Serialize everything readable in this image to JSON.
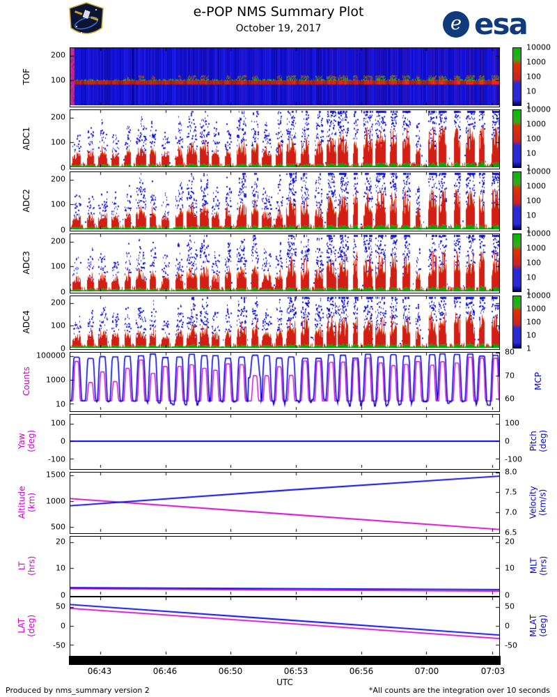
{
  "header": {
    "title": "e-POP NMS Summary Plot",
    "date": "October 19, 2017",
    "esa_logo_text": "esa"
  },
  "footer": {
    "left": "Produced by nms_summary version 2",
    "right": "*All counts are the integration over 10 seconds"
  },
  "colors": {
    "magenta": "#cc00cc",
    "blue": "#0000dd",
    "esa_blue": "#0f3b7c",
    "frame": "#000000"
  },
  "chart_data": {
    "xaxis": {
      "label": "UTC",
      "ticks": [
        {
          "label": "06:43",
          "f": 0.0696
        },
        {
          "label": "06:46",
          "f": 0.2217
        },
        {
          "label": "06:50",
          "f": 0.3738
        },
        {
          "label": "06:53",
          "f": 0.5259
        },
        {
          "label": "06:56",
          "f": 0.678
        },
        {
          "label": "07:00",
          "f": 0.8301
        },
        {
          "label": "07:03",
          "f": 0.9838
        }
      ]
    },
    "colorbar": {
      "scale": "log",
      "ticks": [
        {
          "label": "10000",
          "f": 1
        },
        {
          "label": "1000",
          "f": 0.75
        },
        {
          "label": "100",
          "f": 0.5
        },
        {
          "label": "10",
          "f": 0.25
        },
        {
          "label": "1",
          "f": 0
        }
      ]
    },
    "spectrograms": {
      "seed": 7,
      "bursts": 34,
      "note": "periodic instrument sweeps every ~40 s; count intensity increases toward end of pass"
    },
    "panels": {
      "tof": {
        "type": "heatmap",
        "label": "TOF",
        "yrange": [
          0,
          230
        ],
        "band_center": 95,
        "yticks": [
          {
            "label": "200",
            "f": 0.87
          },
          {
            "label": "100",
            "f": 0.435
          }
        ]
      },
      "adc1": {
        "type": "heatmap",
        "label": "ADC1",
        "yrange": [
          0,
          230
        ],
        "yticks": [
          {
            "label": "200",
            "f": 0.87
          },
          {
            "label": "100",
            "f": 0.435
          },
          {
            "label": "0",
            "f": 0
          }
        ]
      },
      "adc2": {
        "type": "heatmap",
        "label": "ADC2",
        "yrange": [
          0,
          230
        ],
        "yticks": [
          {
            "label": "200",
            "f": 0.87
          },
          {
            "label": "100",
            "f": 0.435
          },
          {
            "label": "0",
            "f": 0
          }
        ]
      },
      "adc3": {
        "type": "heatmap",
        "label": "ADC3",
        "yrange": [
          0,
          230
        ],
        "yticks": [
          {
            "label": "200",
            "f": 0.87
          },
          {
            "label": "100",
            "f": 0.435
          },
          {
            "label": "0",
            "f": 0
          }
        ]
      },
      "adc4": {
        "type": "heatmap",
        "label": "ADC4",
        "yrange": [
          0,
          230
        ],
        "yticks": [
          {
            "label": "200",
            "f": 0.87
          },
          {
            "label": "100",
            "f": 0.435
          },
          {
            "label": "0",
            "f": 0
          }
        ]
      },
      "counts": {
        "type": "line",
        "left_label": "Counts",
        "right_label": "MCP",
        "left_scale": "log",
        "left_range_log10": [
          0.5,
          5.3
        ],
        "right_range": [
          55,
          80
        ],
        "left_ticks": [
          {
            "label": "100000",
            "f": 0.9375
          },
          {
            "label": "1000",
            "f": 0.5208
          },
          {
            "label": "10",
            "f": 0.1042
          }
        ],
        "right_ticks": [
          {
            "label": "80",
            "f": 1
          },
          {
            "label": "70",
            "f": 0.6
          },
          {
            "label": "60",
            "f": 0.2
          }
        ],
        "mcp_high": 78.5,
        "mcp_low": 58,
        "counts_base_log10": 1.25,
        "counts_peak_log10_range": [
          2.8,
          5.0
        ]
      },
      "yaw": {
        "type": "line",
        "left_label": "Yaw\n(deg)",
        "right_label": "Pitch\n(deg)",
        "left_range": [
          -150,
          150
        ],
        "right_range": [
          -150,
          150
        ],
        "left_ticks": [
          {
            "label": "100",
            "f": 0.8333
          },
          {
            "label": "0",
            "f": 0.5
          },
          {
            "label": "-100",
            "f": 0.1667
          }
        ],
        "right_ticks": [
          {
            "label": "100",
            "f": 0.8333
          },
          {
            "label": "0",
            "f": 0.5
          },
          {
            "label": "-100",
            "f": 0.1667
          }
        ],
        "series": [
          {
            "name": "Yaw",
            "axis": "left",
            "color": "#cc00cc",
            "points": [
              [
                0,
                0
              ],
              [
                1,
                0
              ]
            ]
          },
          {
            "name": "Pitch",
            "axis": "right",
            "color": "#0000dd",
            "points": [
              [
                0,
                0
              ],
              [
                1,
                0
              ]
            ]
          }
        ]
      },
      "alt": {
        "type": "line",
        "left_label": "Altitude\n(km)",
        "right_label": "Velocity\n(km/s)",
        "left_range": [
          400,
          1550
        ],
        "right_range": [
          6.5,
          8.0
        ],
        "left_ticks": [
          {
            "label": "1500",
            "f": 0.9565
          },
          {
            "label": "1000",
            "f": 0.5217
          },
          {
            "label": "500",
            "f": 0.087
          }
        ],
        "right_ticks": [
          {
            "label": "8.0",
            "f": 1
          },
          {
            "label": "7.5",
            "f": 0.6667
          },
          {
            "label": "7.0",
            "f": 0.3333
          },
          {
            "label": "6.5",
            "f": 0
          }
        ],
        "series": [
          {
            "name": "Altitude",
            "axis": "left",
            "color": "#cc00cc",
            "points": [
              [
                0,
                1045
              ],
              [
                0.5,
                745
              ],
              [
                1,
                445
              ]
            ]
          },
          {
            "name": "Velocity",
            "axis": "right",
            "color": "#0000dd",
            "points": [
              [
                0,
                7.16
              ],
              [
                0.5,
                7.55
              ],
              [
                1,
                7.91
              ]
            ]
          }
        ]
      },
      "lt": {
        "type": "line",
        "left_label": "LT\n(hrs)",
        "right_label": "MLT\n(hrs)",
        "left_range": [
          0,
          22
        ],
        "right_range": [
          0,
          22
        ],
        "left_ticks": [
          {
            "label": "20",
            "f": 0.9091
          },
          {
            "label": "10",
            "f": 0.4545
          },
          {
            "label": "0",
            "f": 0
          }
        ],
        "right_ticks": [
          {
            "label": "20",
            "f": 0.9091
          },
          {
            "label": "10",
            "f": 0.4545
          },
          {
            "label": "0",
            "f": 0
          }
        ],
        "series": [
          {
            "name": "LT",
            "axis": "left",
            "color": "#cc00cc",
            "points": [
              [
                0,
                2.2
              ],
              [
                1,
                1.3
              ]
            ]
          },
          {
            "name": "MLT",
            "axis": "right",
            "color": "#0000dd",
            "points": [
              [
                0,
                2.6
              ],
              [
                1,
                1.9
              ]
            ]
          }
        ]
      },
      "lat": {
        "type": "line",
        "left_label": "LAT\n(deg)",
        "right_label": "MLAT\n(deg)",
        "left_range": [
          -75,
          75
        ],
        "right_range": [
          -75,
          75
        ],
        "left_ticks": [
          {
            "label": "50",
            "f": 0.8333
          },
          {
            "label": "0",
            "f": 0.5
          },
          {
            "label": "-50",
            "f": 0.1667
          }
        ],
        "right_ticks": [
          {
            "label": "50",
            "f": 0.8333
          },
          {
            "label": "0",
            "f": 0.5
          },
          {
            "label": "-50",
            "f": 0.1667
          }
        ],
        "series": [
          {
            "name": "LAT",
            "axis": "left",
            "color": "#cc00cc",
            "points": [
              [
                0,
                46
              ],
              [
                0.5,
                7
              ],
              [
                1,
                -33
              ]
            ]
          },
          {
            "name": "MLAT",
            "axis": "right",
            "color": "#0000dd",
            "points": [
              [
                0,
                56
              ],
              [
                0.5,
                16
              ],
              [
                1,
                -24
              ]
            ]
          }
        ]
      }
    }
  }
}
